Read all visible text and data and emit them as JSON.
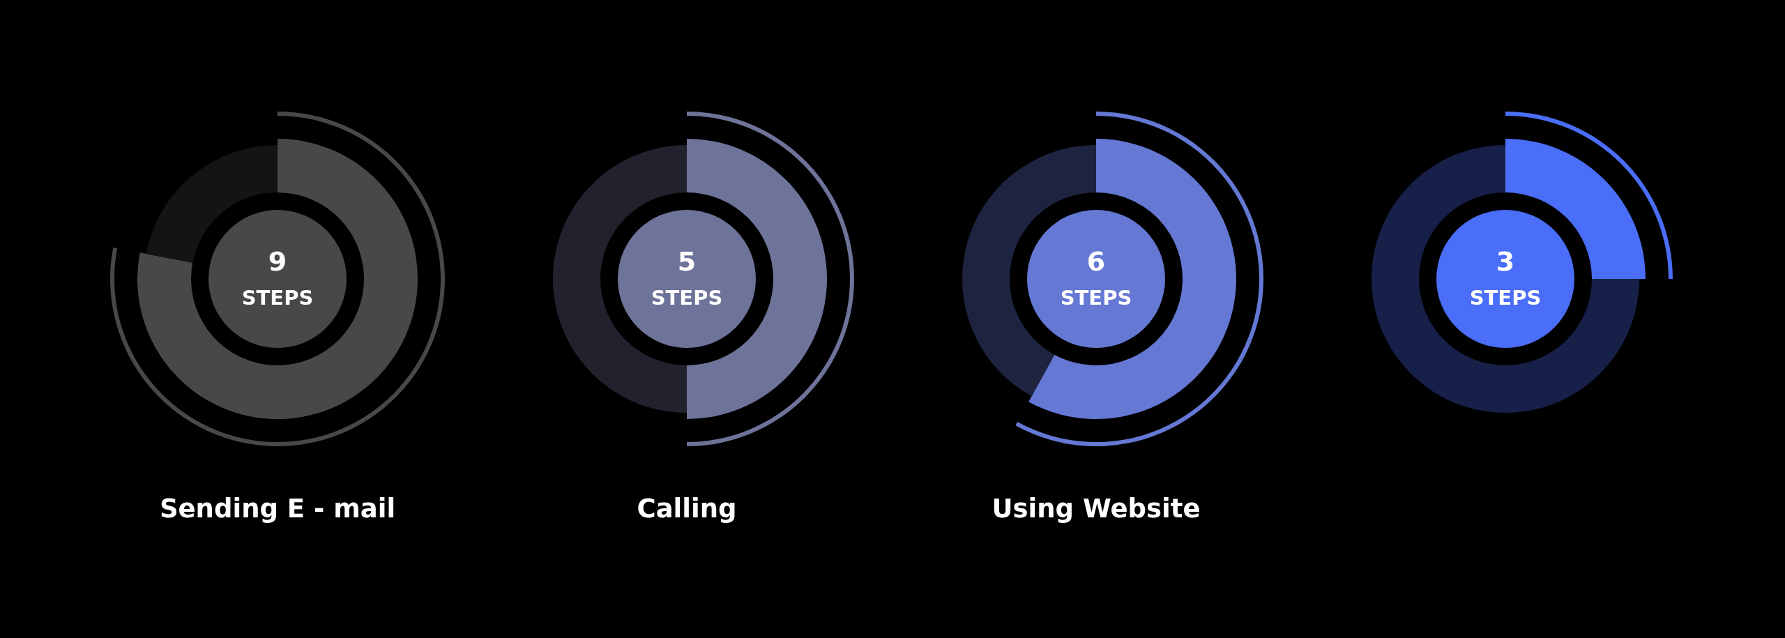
{
  "chart_data": [
    {
      "type": "donut",
      "title": "Sending E - mail",
      "categories": [
        null,
        null
      ],
      "values": [
        78,
        22
      ],
      "colors": [
        "#484848",
        "#141414"
      ],
      "annotations": [
        "9",
        "STEPS"
      ]
    },
    {
      "type": "donut",
      "title": "Calling",
      "categories": [
        null,
        null
      ],
      "values": [
        50,
        50
      ],
      "colors": [
        "#6e7399",
        "#21222e"
      ],
      "annotations": [
        "5",
        "STEPS"
      ]
    },
    {
      "type": "donut",
      "title": "Using Website",
      "categories": [
        null,
        null
      ],
      "values": [
        58,
        42
      ],
      "colors": [
        "#6478d4",
        "#1e2440"
      ],
      "annotations": [
        "6",
        "STEPS"
      ]
    },
    {
      "type": "donut",
      "categories": [
        null,
        null
      ],
      "values": [
        25,
        75
      ],
      "colors": [
        "#4a6ef7",
        "#172049"
      ],
      "annotations": [
        "3",
        "STEPS"
      ]
    }
  ]
}
